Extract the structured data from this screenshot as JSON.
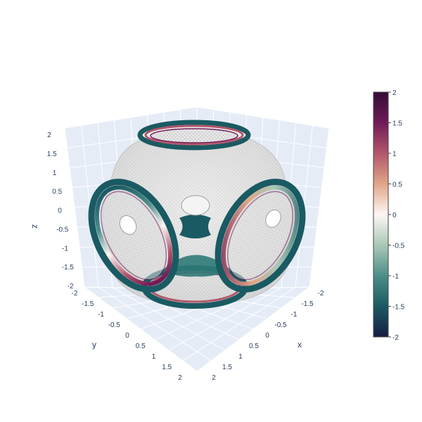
{
  "chart_data": {
    "type": "surface",
    "title": "",
    "colorscale_name": "curl",
    "colorscale": [
      "#151d44",
      "#1a5a62",
      "#4c8f89",
      "#a9c8b6",
      "#fef6f5",
      "#e0a588",
      "#b2576b",
      "#701a58",
      "#340d35"
    ],
    "background_color": "#e5ecf6",
    "grid_color": "#ffffff",
    "axes": {
      "x": {
        "label": "x",
        "range": [
          -2,
          2
        ],
        "ticks": [
          "-2",
          "-1.5",
          "-1",
          "-0.5",
          "0",
          "0.5",
          "1",
          "1.5",
          "2"
        ]
      },
      "y": {
        "label": "y",
        "range": [
          -2,
          2
        ],
        "ticks": [
          "-2",
          "-1.5",
          "-1",
          "-0.5",
          "0",
          "0.5",
          "1",
          "1.5",
          "2"
        ]
      },
      "z": {
        "label": "z",
        "range": [
          -2,
          2
        ],
        "ticks": [
          "-2",
          "-1.5",
          "-1",
          "-0.5",
          "0",
          "0.5",
          "1",
          "1.5",
          "2"
        ]
      }
    },
    "colorbar": {
      "range": [
        -2,
        2
      ],
      "ticks": [
        "2",
        "1.5",
        "1",
        "0.5",
        "0",
        "-0.5",
        "-1",
        "-1.5",
        "-2"
      ]
    },
    "surface_description": "cubic-symmetric minimal-surface-like shape with elliptical openings on each face"
  }
}
